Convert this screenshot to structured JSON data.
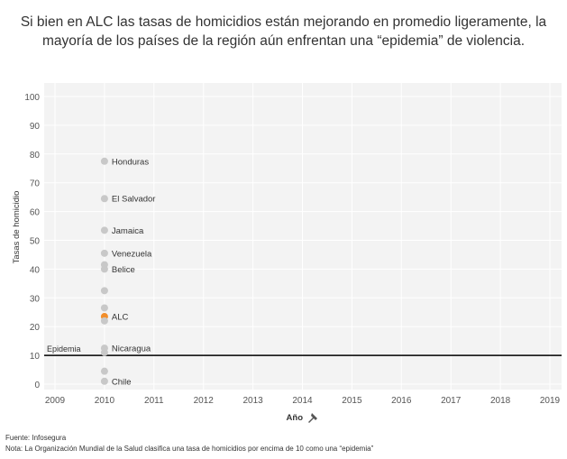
{
  "title": {
    "line1": "Si bien en ALC las tasas de homicidios están mejorando en promedio ligeramente, la",
    "line2": "mayoría de los países de la región aún enfrentan una “epidemia” de violencia."
  },
  "chart_data": {
    "type": "scatter",
    "xlabel": "Año",
    "ylabel": "Tasas de homicidio",
    "xlim": [
      2009,
      2019
    ],
    "ylim": [
      0,
      100
    ],
    "x_ticks": [
      2009,
      2010,
      2011,
      2012,
      2013,
      2014,
      2015,
      2016,
      2017,
      2018,
      2019
    ],
    "y_ticks": [
      0,
      10,
      20,
      30,
      40,
      50,
      60,
      70,
      80,
      90,
      100
    ],
    "grid": true,
    "points": [
      {
        "x": 2010,
        "y": 77.5,
        "label": "Honduras"
      },
      {
        "x": 2010,
        "y": 64.5,
        "label": "El Salvador"
      },
      {
        "x": 2010,
        "y": 53.5,
        "label": "Jamaica"
      },
      {
        "x": 2010,
        "y": 45.5,
        "label": "Venezuela"
      },
      {
        "x": 2010,
        "y": 41.5,
        "label": ""
      },
      {
        "x": 2010,
        "y": 40.0,
        "label": "Belice"
      },
      {
        "x": 2010,
        "y": 32.5,
        "label": ""
      },
      {
        "x": 2010,
        "y": 26.5,
        "label": ""
      },
      {
        "x": 2010,
        "y": 23.5,
        "label": "ALC",
        "highlight": true
      },
      {
        "x": 2010,
        "y": 22.0,
        "label": ""
      },
      {
        "x": 2010,
        "y": 12.5,
        "label": "Nicaragua"
      },
      {
        "x": 2010,
        "y": 11.0,
        "label": ""
      },
      {
        "x": 2010,
        "y": 4.5,
        "label": ""
      },
      {
        "x": 2010,
        "y": 1.0,
        "label": "Chile"
      }
    ],
    "reference_line": {
      "y": 10,
      "label": "Epidemia"
    },
    "colors": {
      "point": "#c8c8c8",
      "highlight": "#f28e2b",
      "reference": "#000000"
    }
  },
  "footer": {
    "source": "Fuente: Infosegura",
    "note": "Nota: La Organización Mundial de la Salud clasifica una tasa de homicidios por encima de 10 como una “epidemia”"
  }
}
